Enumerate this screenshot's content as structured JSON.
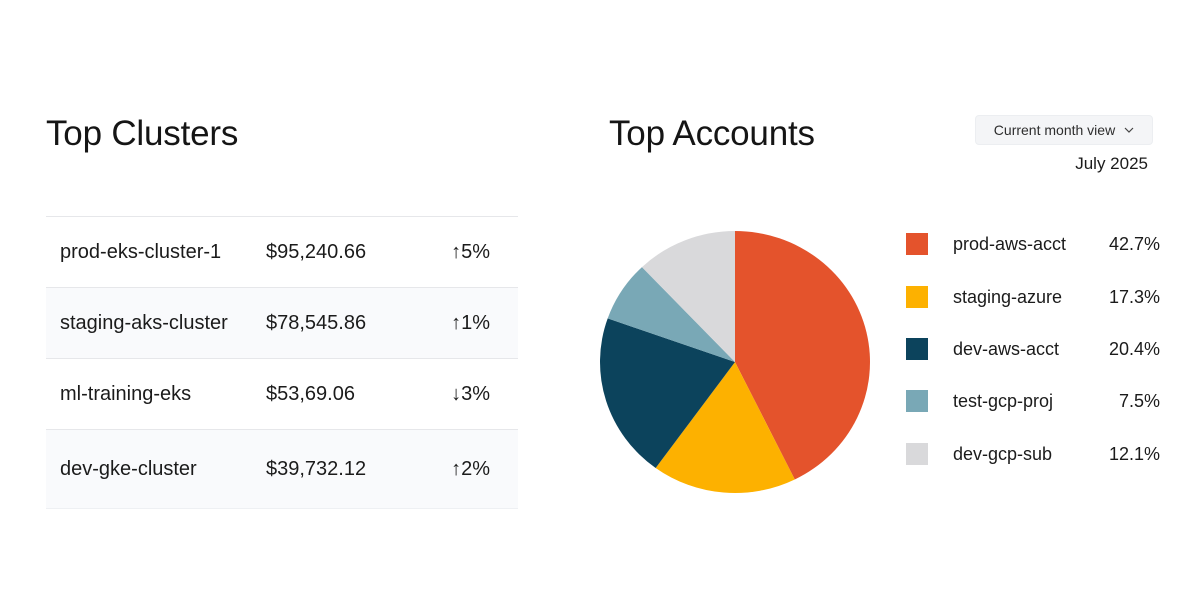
{
  "clusters": {
    "title": "Top Clusters",
    "rows": [
      {
        "name": "prod-eks-cluster-1",
        "cost": "$95,240.66",
        "trend": "↑5%",
        "direction": "up"
      },
      {
        "name": "staging-aks-cluster",
        "cost": "$78,545.86",
        "trend": "↑1%",
        "direction": "up"
      },
      {
        "name": "ml-training-eks",
        "cost": "$53,69.06",
        "trend": "↓3%",
        "direction": "down"
      },
      {
        "name": "dev-gke-cluster",
        "cost": "$39,732.12",
        "trend": "↑2%",
        "direction": "up"
      }
    ]
  },
  "accounts": {
    "title": "Top Accounts",
    "view_select": {
      "label": "Current month view",
      "icon": "chevron-down-icon"
    },
    "period": "July 2025"
  },
  "colors": {
    "trend_up": "#e53a3a",
    "trend_down": "#3f9e3a"
  },
  "chart_data": {
    "type": "pie",
    "title": "",
    "slices": [
      {
        "label": "prod-aws-acct",
        "value": 42.7,
        "display": "42.7%",
        "color": "#e4532c"
      },
      {
        "label": "staging-azure",
        "value": 17.3,
        "display": "17.3%",
        "color": "#fdb100"
      },
      {
        "label": "dev-aws-acct",
        "value": 20.4,
        "display": "20.4%",
        "color": "#0c435c"
      },
      {
        "label": "test-gcp-proj",
        "value": 7.5,
        "display": "7.5%",
        "color": "#79a8b6"
      },
      {
        "label": "dev-gcp-sub",
        "value": 12.1,
        "display": "12.1%",
        "color": "#d9d9db"
      }
    ],
    "start_angle": "12 o'clock",
    "direction": "clockwise",
    "legend_placement": "right"
  }
}
